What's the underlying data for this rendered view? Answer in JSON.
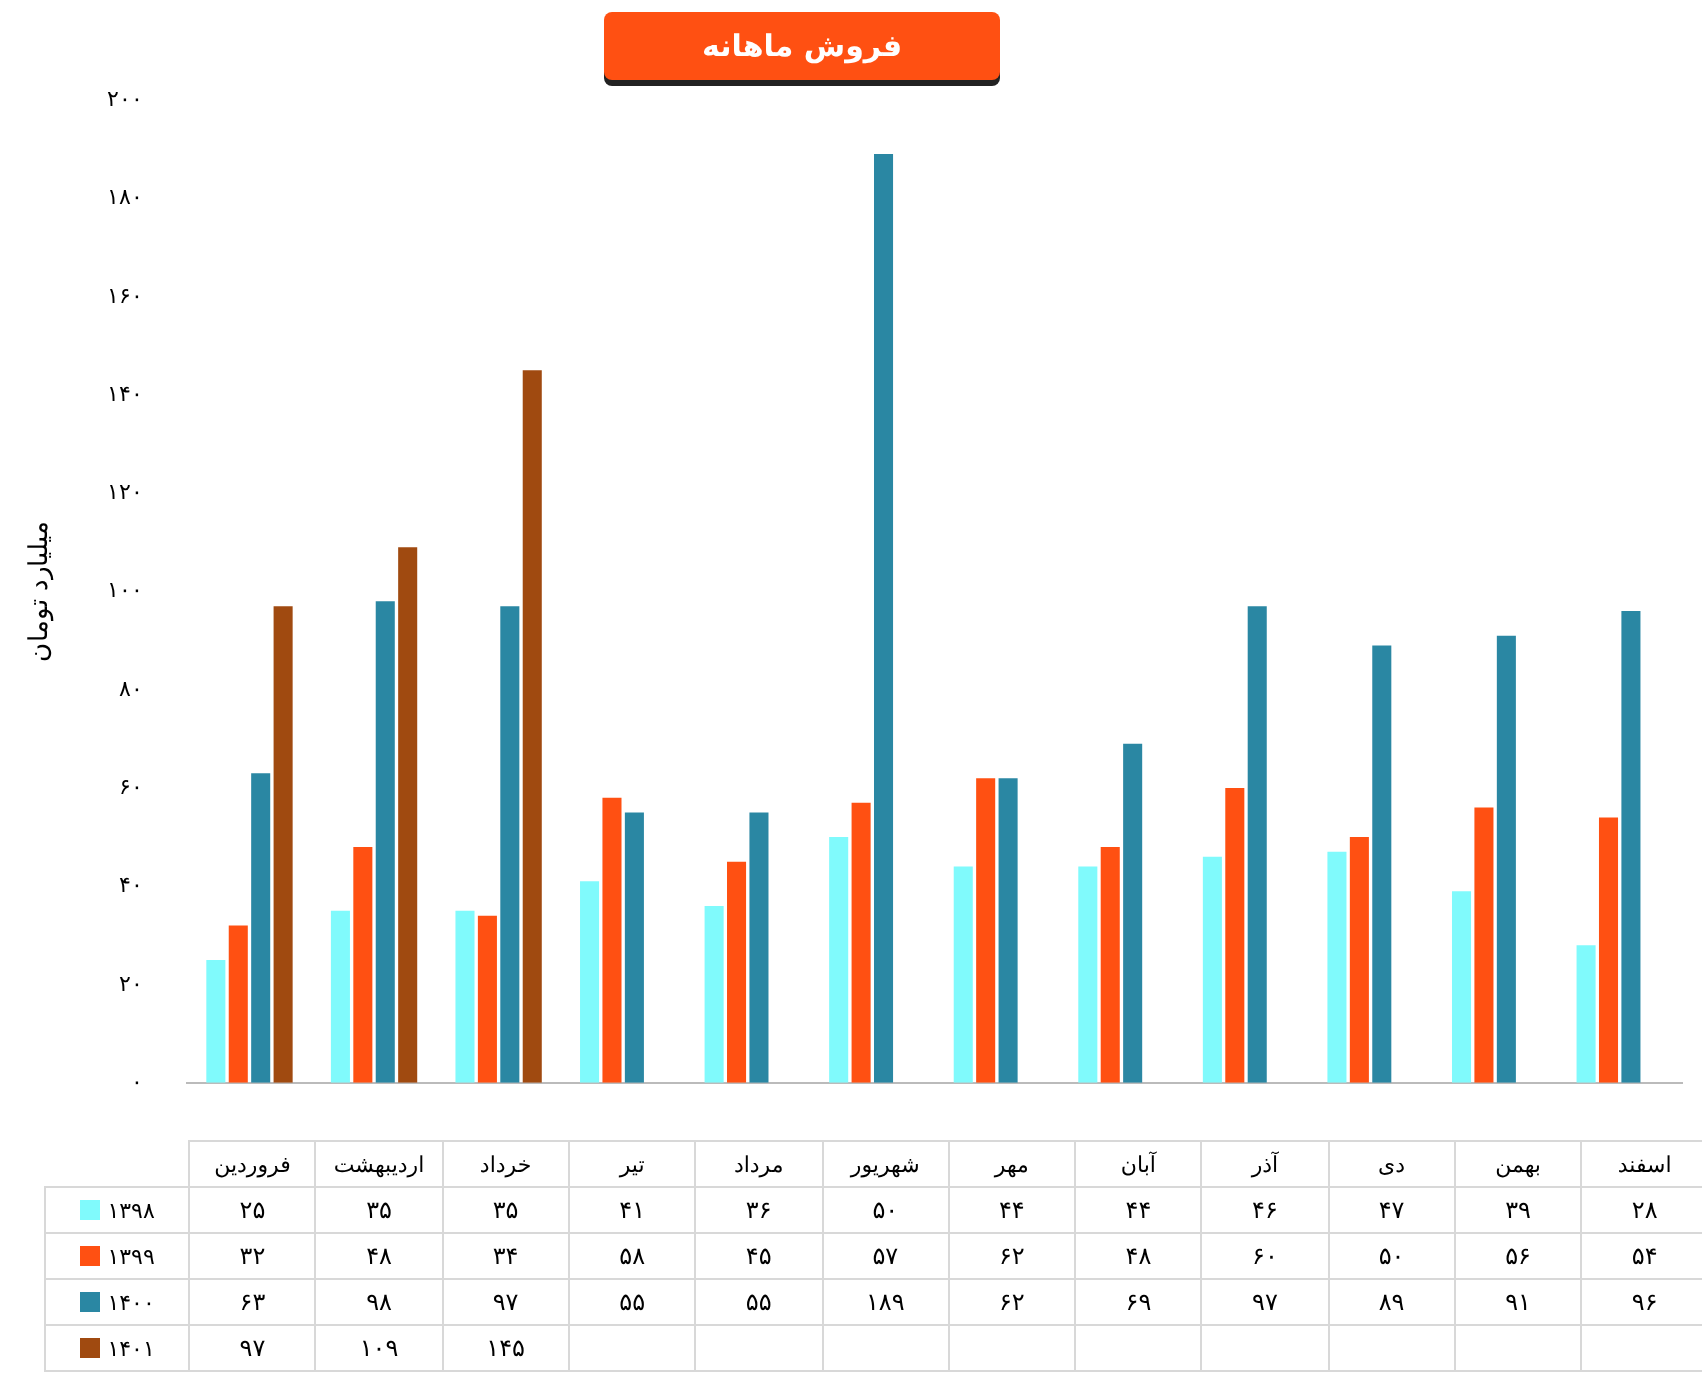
{
  "chart_data": {
    "type": "bar",
    "title": "فروش ماهانه",
    "ylabel": "میلیارد تومان",
    "categories": [
      "فروردین",
      "اردیبهشت",
      "خرداد",
      "تیر",
      "مرداد",
      "شهریور",
      "مهر",
      "آبان",
      "آذر",
      "دی",
      "بهمن",
      "اسفند"
    ],
    "series": [
      {
        "name": "۱۳۹۸",
        "color": "#80fafc",
        "values": [
          25,
          35,
          35,
          41,
          36,
          50,
          44,
          44,
          46,
          47,
          39,
          28
        ],
        "value_labels": [
          "۲۵",
          "۳۵",
          "۳۵",
          "۴۱",
          "۳۶",
          "۵۰",
          "۴۴",
          "۴۴",
          "۴۶",
          "۴۷",
          "۳۹",
          "۲۸"
        ]
      },
      {
        "name": "۱۳۹۹",
        "color": "#ff5012",
        "values": [
          32,
          48,
          34,
          58,
          45,
          57,
          62,
          48,
          60,
          50,
          56,
          54
        ],
        "value_labels": [
          "۳۲",
          "۴۸",
          "۳۴",
          "۵۸",
          "۴۵",
          "۵۷",
          "۶۲",
          "۴۸",
          "۶۰",
          "۵۰",
          "۵۶",
          "۵۴"
        ]
      },
      {
        "name": "۱۴۰۰",
        "color": "#2a87a3",
        "values": [
          63,
          98,
          97,
          55,
          55,
          189,
          62,
          69,
          97,
          89,
          91,
          96
        ],
        "value_labels": [
          "۶۳",
          "۹۸",
          "۹۷",
          "۵۵",
          "۵۵",
          "۱۸۹",
          "۶۲",
          "۶۹",
          "۹۷",
          "۸۹",
          "۹۱",
          "۹۶"
        ]
      },
      {
        "name": "۱۴۰۱",
        "color": "#a04a10",
        "values": [
          97,
          109,
          145,
          null,
          null,
          null,
          null,
          null,
          null,
          null,
          null,
          null
        ],
        "value_labels": [
          "۹۷",
          "۱۰۹",
          "۱۴۵",
          null,
          null,
          null,
          null,
          null,
          null,
          null,
          null,
          null
        ]
      }
    ],
    "ylim": [
      0,
      200
    ],
    "yticks": [
      {
        "value": 0,
        "label": "۰"
      },
      {
        "value": 20,
        "label": "۲۰"
      },
      {
        "value": 40,
        "label": "۴۰"
      },
      {
        "value": 60,
        "label": "۶۰"
      },
      {
        "value": 80,
        "label": "۸۰"
      },
      {
        "value": 100,
        "label": "۱۰۰"
      },
      {
        "value": 120,
        "label": "۱۲۰"
      },
      {
        "value": 140,
        "label": "۱۴۰"
      },
      {
        "value": 160,
        "label": "۱۶۰"
      },
      {
        "value": 180,
        "label": "۱۸۰"
      },
      {
        "value": 200,
        "label": "۲۰۰"
      }
    ],
    "grid": false,
    "legend": "bottom"
  }
}
